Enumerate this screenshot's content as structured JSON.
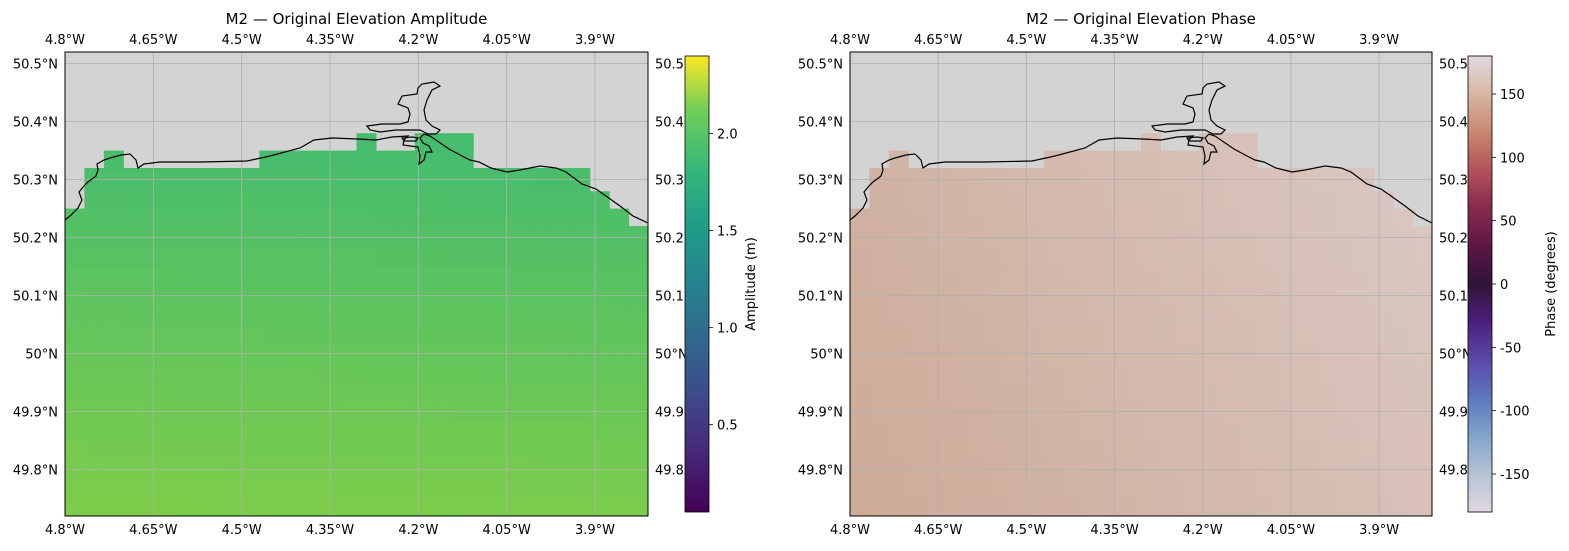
{
  "chart_data": [
    {
      "type": "heatmap",
      "title": "M2 — Original Elevation Amplitude",
      "x_ticks": [
        "4.8°W",
        "4.65°W",
        "4.5°W",
        "4.35°W",
        "4.2°W",
        "4.05°W",
        "3.9°W"
      ],
      "x_tick_values": [
        -4.8,
        -4.65,
        -4.5,
        -4.35,
        -4.2,
        -4.05,
        -3.9
      ],
      "y_ticks": [
        "49.8°N",
        "49.9°N",
        "50°N",
        "50.1°N",
        "50.2°N",
        "50.3°N",
        "50.4°N",
        "50.5°N"
      ],
      "y_tick_values": [
        49.8,
        49.9,
        50.0,
        50.1,
        50.2,
        50.3,
        50.4,
        50.5
      ],
      "right_y_ticks": [
        "49.8",
        "49.9",
        "50°N",
        "50.1",
        "50.2",
        "50.3",
        "50.4",
        "50.5"
      ],
      "xlim": [
        -4.8,
        -3.81
      ],
      "ylim": [
        49.72,
        50.52
      ],
      "colorbar": {
        "label": "Amplitude (m)",
        "ticks": [
          "0.5",
          "1.0",
          "1.5",
          "2.0"
        ],
        "tick_values": [
          0.5,
          1.0,
          1.5,
          2.0
        ],
        "range": [
          0.05,
          2.4
        ],
        "colormap": "viridis"
      },
      "field": {
        "north": 1.7,
        "south": 2.05,
        "west_bias": 0.0,
        "east_bias": 0.04
      },
      "grid": true,
      "land_color": "#d3d3d3"
    },
    {
      "type": "heatmap",
      "title": "M2 — Original Elevation Phase",
      "x_ticks": [
        "4.8°W",
        "4.65°W",
        "4.5°W",
        "4.35°W",
        "4.2°W",
        "4.05°W",
        "3.9°W"
      ],
      "x_tick_values": [
        -4.8,
        -4.65,
        -4.5,
        -4.35,
        -4.2,
        -4.05,
        -3.9
      ],
      "y_ticks": [
        "49.8°N",
        "49.9°N",
        "50°N",
        "50.1°N",
        "50.2°N",
        "50.3°N",
        "50.4°N",
        "50.5°N"
      ],
      "y_tick_values": [
        49.8,
        49.9,
        50.0,
        50.1,
        50.2,
        50.3,
        50.4,
        50.5
      ],
      "right_y_ticks": [
        "49.8",
        "49.9",
        "50°N",
        "50.1",
        "50.2",
        "50.3",
        "50.4",
        "50.5"
      ],
      "xlim": [
        -4.8,
        -3.81
      ],
      "ylim": [
        49.72,
        50.52
      ],
      "colorbar": {
        "label": "Phase (degrees)",
        "ticks": [
          "-150",
          "-100",
          "-50",
          "0",
          "50",
          "100",
          "150"
        ],
        "tick_values": [
          -150,
          -100,
          -50,
          0,
          50,
          100,
          150
        ],
        "range": [
          -180,
          180
        ],
        "colormap": "twilight"
      },
      "field": {
        "west": 135,
        "east": 168
      },
      "grid": true,
      "land_color": "#d3d3d3"
    }
  ]
}
